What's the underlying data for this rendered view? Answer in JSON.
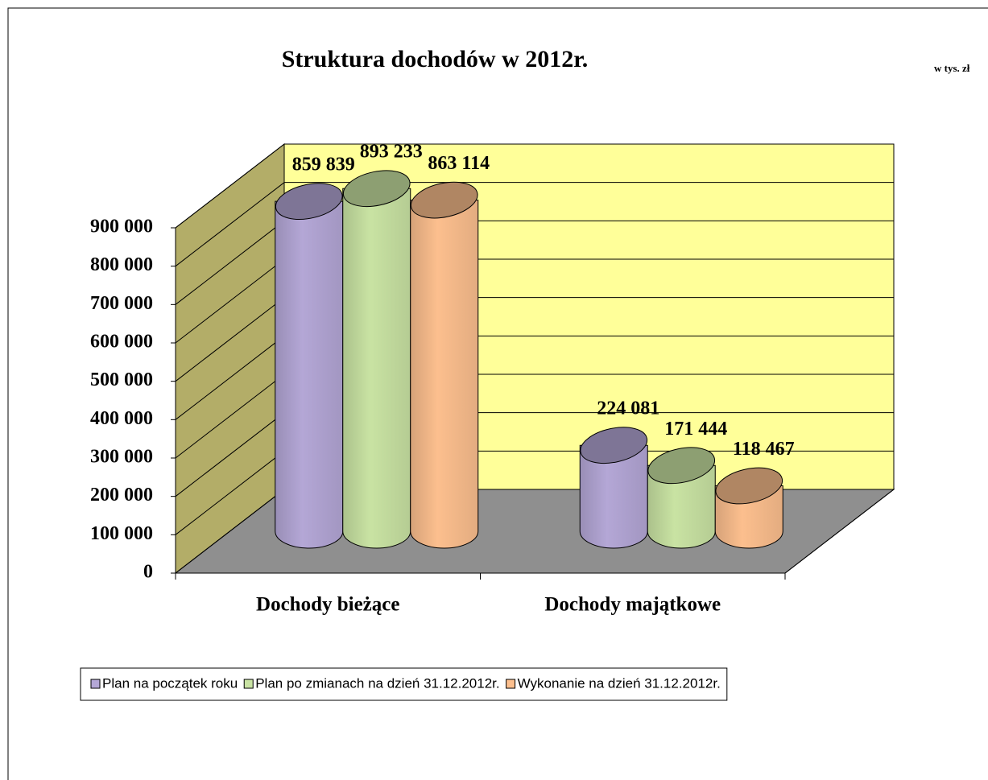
{
  "chart_data": {
    "type": "bar3d-cylinder",
    "title": "Struktura dochodów w 2012r.",
    "unit_note": "w tys. zł",
    "categories": [
      "Dochody bieżące",
      "Dochody majątkowe"
    ],
    "series": [
      {
        "name": "Plan na początek roku",
        "color": "#b4a7d6",
        "values": [
          859839,
          224081
        ],
        "value_labels": [
          "859 839",
          "224 081"
        ]
      },
      {
        "name": "Plan po zmianach na dzień 31.12.2012r.",
        "color": "#c9e3a3",
        "values": [
          893233,
          171444
        ],
        "value_labels": [
          "893 233",
          "171 444"
        ]
      },
      {
        "name": "Wykonanie na dzień 31.12.2012r.",
        "color": "#fcbf8e",
        "values": [
          863114,
          118467
        ],
        "value_labels": [
          "863 114",
          "118 467"
        ]
      }
    ],
    "ylim": [
      0,
      900000
    ],
    "yticks": [
      0,
      {
        "value": 100000,
        "label": "100 000"
      },
      {
        "value": 200000,
        "label": "200 000"
      },
      {
        "value": 300000,
        "label": "300 000"
      },
      {
        "value": 400000,
        "label": "400 000"
      },
      {
        "value": 500000,
        "label": "500 000"
      },
      {
        "value": 600000,
        "label": "600 000"
      },
      {
        "value": 700000,
        "label": "700 000"
      },
      {
        "value": 800000,
        "label": "800 000"
      },
      {
        "value": 900000,
        "label": "900 000"
      }
    ],
    "grid": true,
    "legend": "bottom"
  }
}
